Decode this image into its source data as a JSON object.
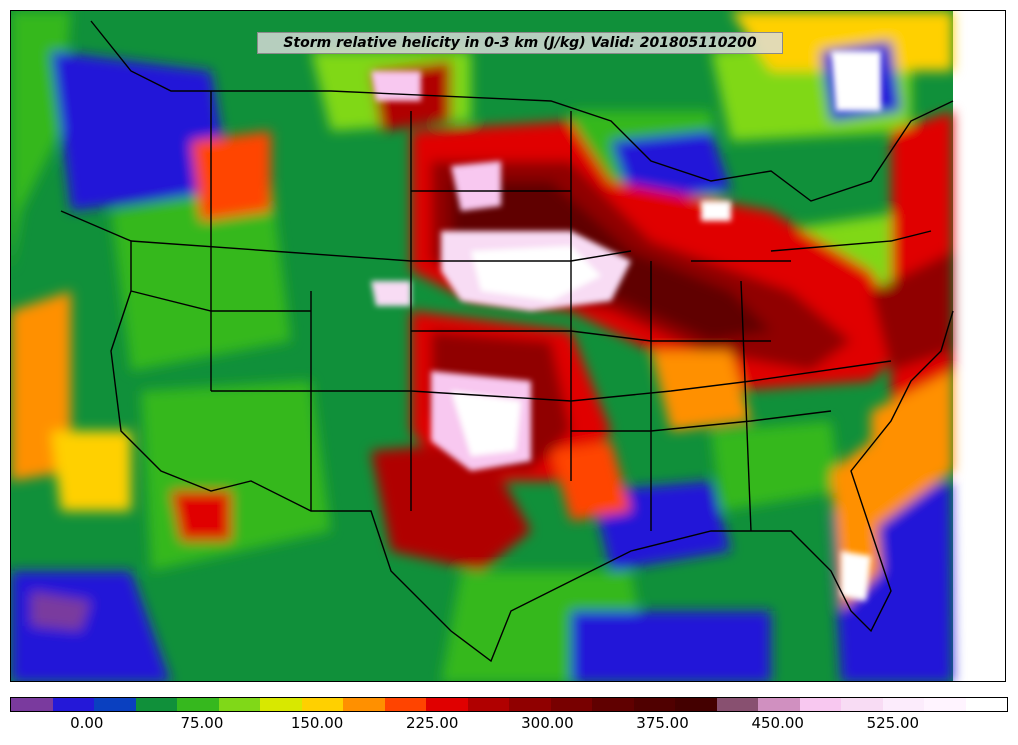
{
  "title": "Storm relative helicity in 0-3 km (J/kg) Valid: 201805110200",
  "colorbar": {
    "colors": [
      "#7a3a9e",
      "#2418d8",
      "#0a40c0",
      "#10903a",
      "#36b81e",
      "#80d818",
      "#d8e800",
      "#ffd000",
      "#ff9000",
      "#ff4400",
      "#e00000",
      "#b00000",
      "#900000",
      "#780000",
      "#600000",
      "#500000",
      "#440000",
      "#885070",
      "#d090c0",
      "#f8c8f0",
      "#f8dcf4",
      "#fcecfc",
      "#fff4ff",
      "#ffffff"
    ],
    "tick_labels": [
      "0.00",
      "75.00",
      "150.00",
      "225.00",
      "300.00",
      "375.00",
      "450.00",
      "525.00"
    ],
    "tick_values": [
      0,
      75,
      150,
      225,
      300,
      375,
      450,
      525
    ],
    "min": -50,
    "max": 600
  },
  "legend_colors": {
    "background": "#10903a",
    "high": "#900000",
    "max": "#ffffff",
    "ocean": "#2418d8"
  }
}
